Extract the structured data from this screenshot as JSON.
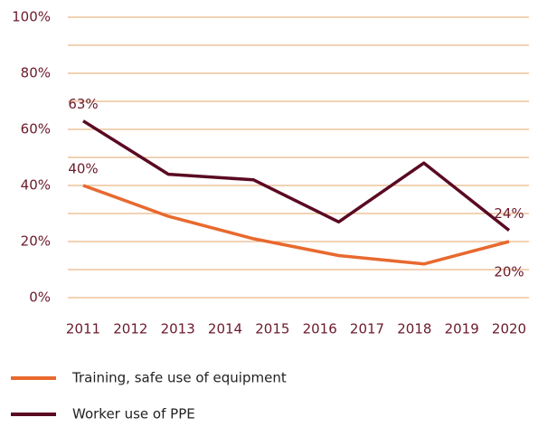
{
  "chart_data": {
    "type": "line",
    "x": [
      2011,
      2012.8,
      2014.6,
      2016.4,
      2018.2,
      2020
    ],
    "xlim": [
      2011,
      2020
    ],
    "xticks": [
      2011,
      2012,
      2013,
      2014,
      2015,
      2016,
      2017,
      2018,
      2019,
      2020
    ],
    "ylim": [
      0,
      100
    ],
    "yticks": [
      {
        "value": 0,
        "label": "0%"
      },
      {
        "value": 20,
        "label": "20%"
      },
      {
        "value": 40,
        "label": "40%"
      },
      {
        "value": 60,
        "label": "60%"
      },
      {
        "value": 80,
        "label": "80%"
      },
      {
        "value": 100,
        "label": "100%"
      }
    ],
    "yminor": [
      10,
      30,
      50,
      70,
      90
    ],
    "grid": true,
    "series": [
      {
        "name": "Training, safe use of equipment",
        "color": "#e8692f",
        "values": [
          40,
          29,
          21,
          15,
          12,
          20
        ],
        "value_labels": [
          "40%",
          null,
          null,
          null,
          null,
          "20%"
        ]
      },
      {
        "name": "Worker use of PPE",
        "color": "#5a0a22",
        "values": [
          63,
          44,
          42,
          27,
          48,
          24
        ],
        "value_labels": [
          "63%",
          null,
          null,
          null,
          null,
          "24%"
        ]
      }
    ],
    "legend": "bottom"
  }
}
